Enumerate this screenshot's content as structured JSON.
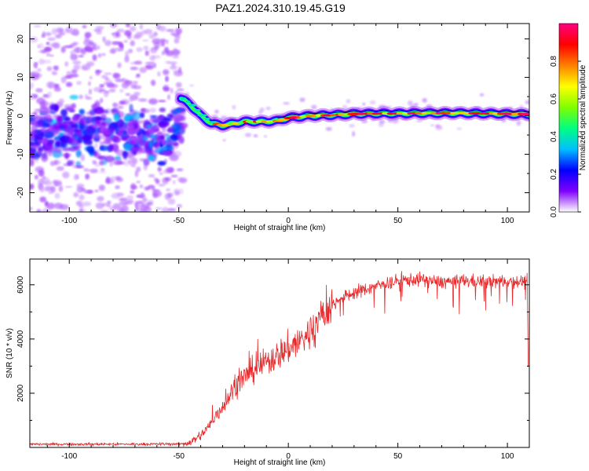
{
  "title": "PAZ1.2024.310.19.45.G19",
  "chart_data": [
    {
      "type": "heatmap",
      "xlabel": "Height of straight line (km)",
      "ylabel": "Frequency (Hz)",
      "xlim": [
        -118,
        110
      ],
      "ylim": [
        -25,
        24
      ],
      "xticks": [
        -100,
        -50,
        0,
        50,
        100
      ],
      "yticks": [
        -20,
        -10,
        0,
        10,
        20
      ],
      "colorbar": {
        "label": "Normalized spectral amplitude",
        "range": [
          0,
          1
        ],
        "ticks": [
          "0.0",
          "0.2",
          "0.4",
          "0.6",
          "0.8"
        ],
        "tick_values": [
          0,
          0.2,
          0.4,
          0.6,
          0.8
        ],
        "colors": [
          "#ffffff",
          "#7f00ff",
          "#0000ff",
          "#00c0ff",
          "#00ff80",
          "#80ff00",
          "#ffff00",
          "#ff8000",
          "#ff0000",
          "#ff0080"
        ]
      },
      "ridge": {
        "x": [
          -49,
          -45,
          -40,
          -35,
          -30,
          -25,
          -20,
          -15,
          -10,
          -5,
          0,
          10,
          20,
          30,
          40,
          50,
          60,
          70,
          80,
          90,
          100,
          110
        ],
        "y": [
          4.5,
          3,
          0,
          -2,
          -2.5,
          -2,
          -1.5,
          -1.5,
          -1.5,
          -1.3,
          -0.5,
          0,
          0.2,
          0.5,
          0.6,
          0.6,
          0.7,
          0.7,
          0.7,
          0.6,
          0.5,
          0.4
        ]
      },
      "noise_region_x": [
        -118,
        -48
      ],
      "noise_band_y": [
        -9,
        0
      ]
    },
    {
      "type": "line",
      "xlabel": "Height of straight line (km)",
      "ylabel": "SNR (10 * v/v)",
      "xlim": [
        -118,
        110
      ],
      "ylim": [
        0,
        6950
      ],
      "xticks": [
        -100,
        -50,
        0,
        50,
        100
      ],
      "yticks": [
        2000,
        4000,
        6000
      ],
      "color": "#e8282a",
      "envelope": {
        "x": [
          -118,
          -70,
          -48,
          -44,
          -40,
          -36,
          -32,
          -28,
          -24,
          -20,
          -16,
          -12,
          -8,
          -4,
          0,
          4,
          8,
          12,
          16,
          20,
          24,
          30,
          40,
          50,
          60,
          70,
          80,
          90,
          100,
          109
        ],
        "y": [
          120,
          120,
          130,
          220,
          450,
          800,
          1300,
          1750,
          2300,
          2600,
          2850,
          3050,
          3250,
          3450,
          3650,
          3850,
          4100,
          4400,
          4900,
          5250,
          5500,
          5700,
          5950,
          6150,
          6200,
          6100,
          6150,
          6100,
          6150,
          6100
        ]
      }
    }
  ]
}
